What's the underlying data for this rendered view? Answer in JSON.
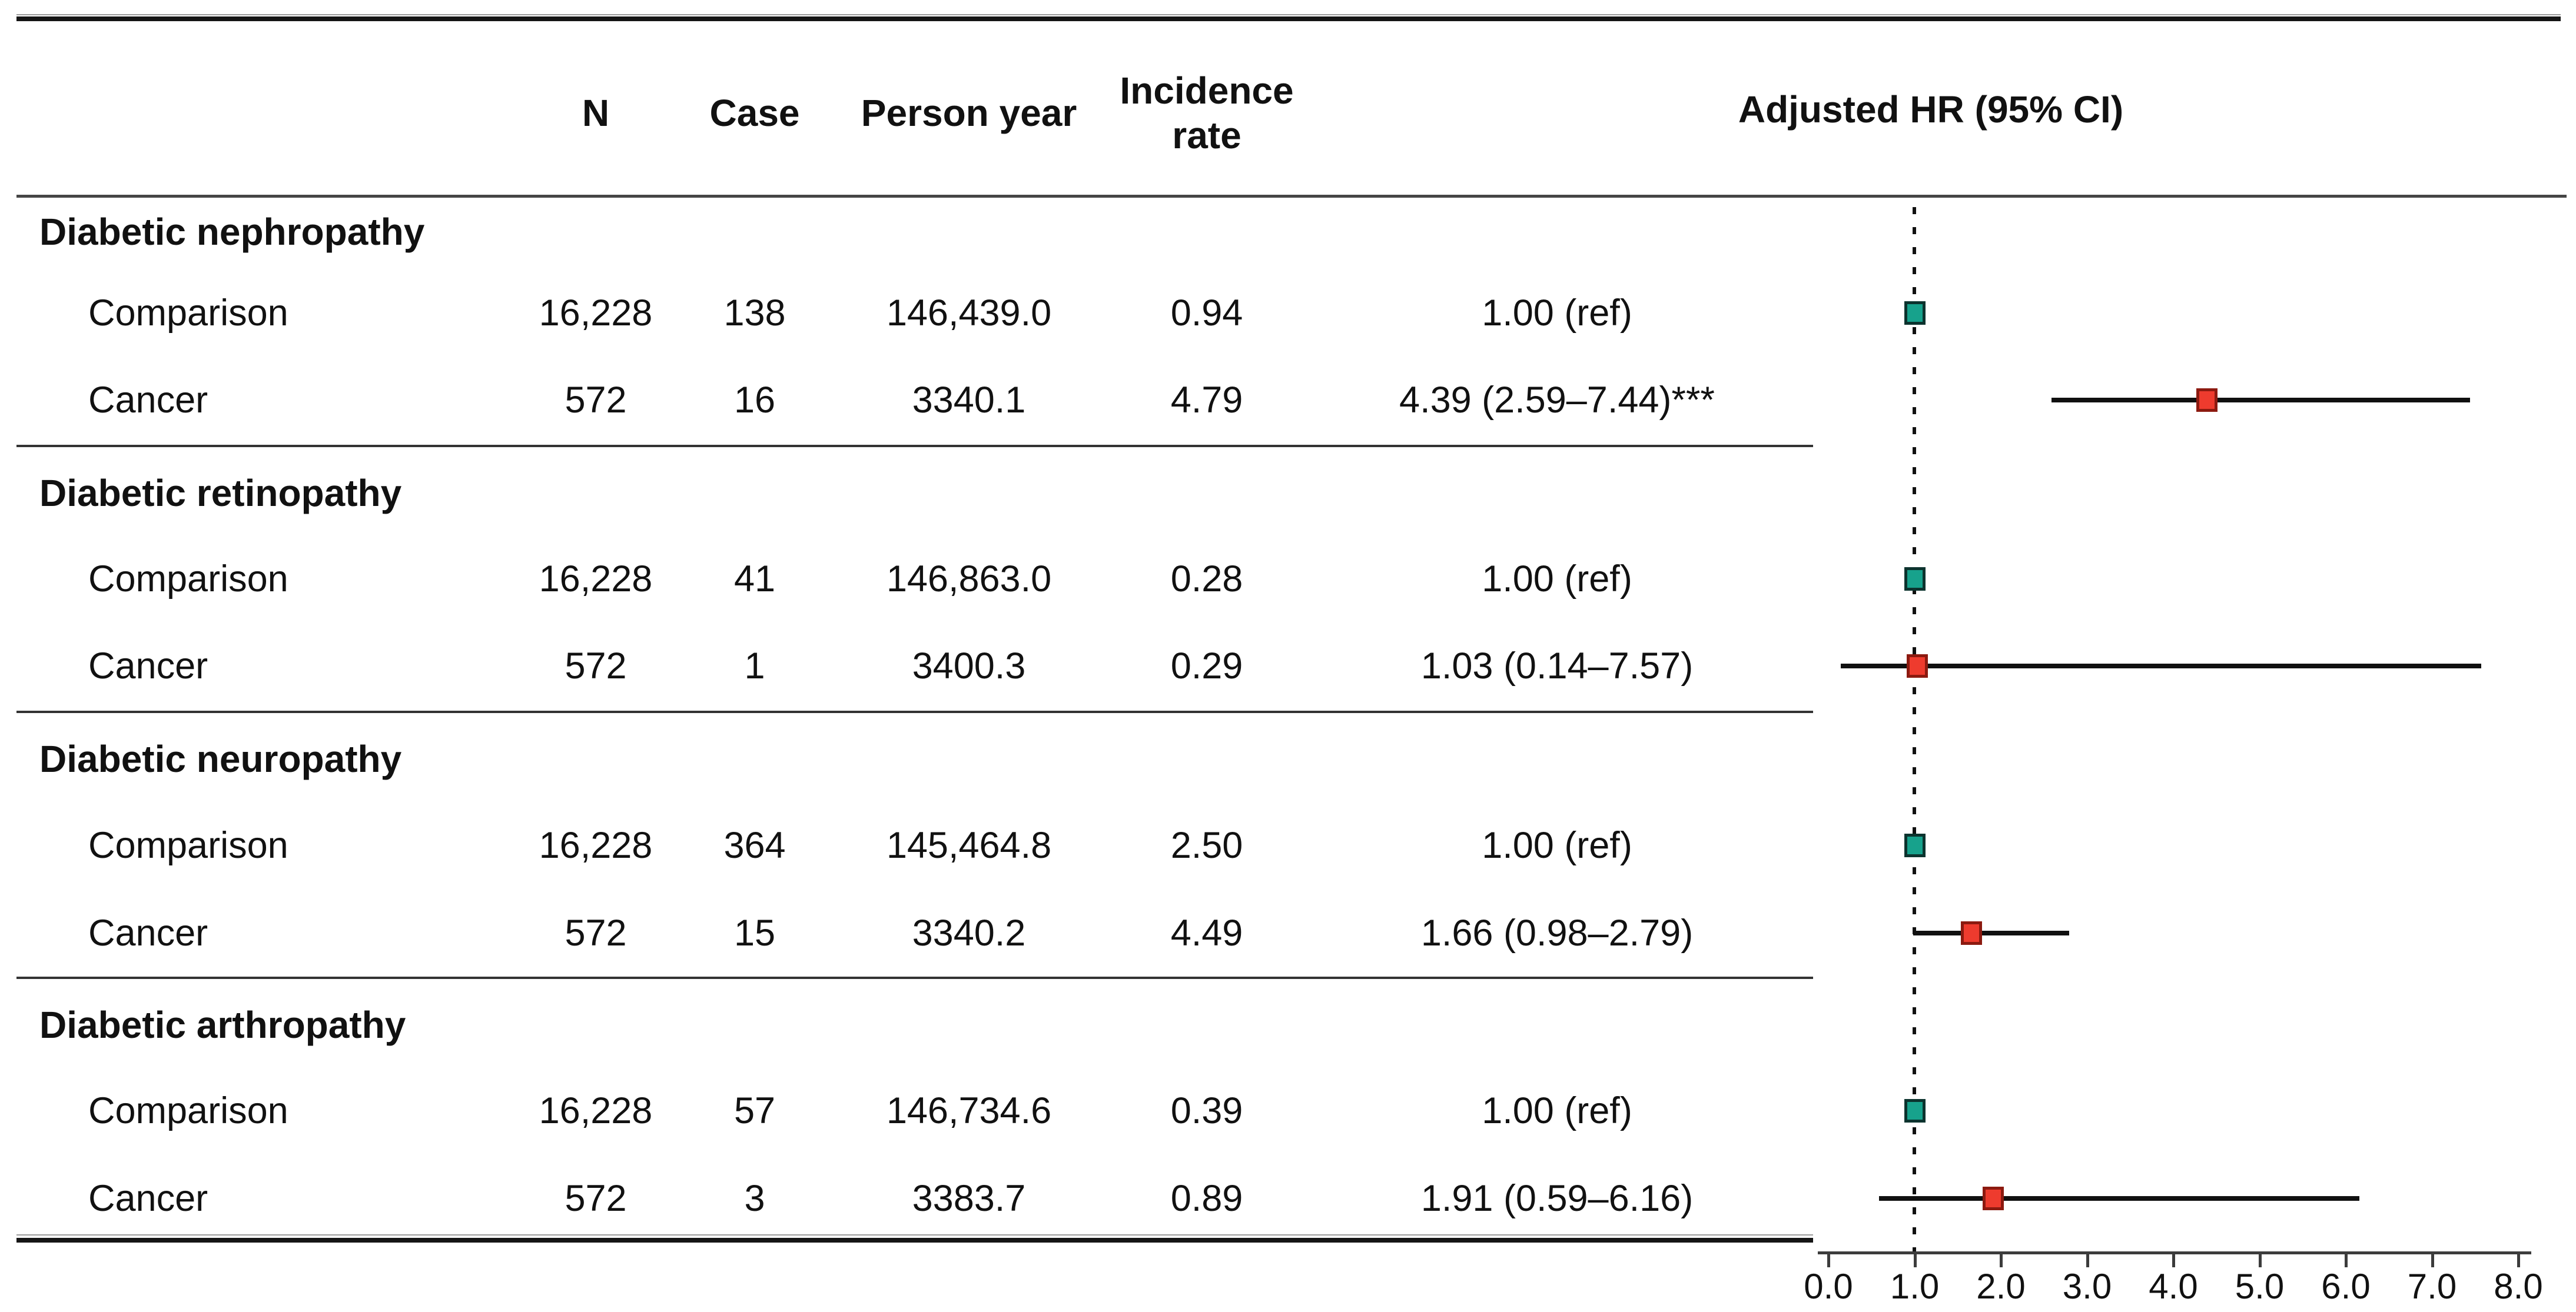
{
  "header": {
    "n": "N",
    "case": "Case",
    "person_year": "Person year",
    "incidence_line1": "Incidence",
    "incidence_line2": "rate",
    "adjusted_hr": "Adjusted HR (95% CI)"
  },
  "colors": {
    "comparison": {
      "fill": "#17A28C",
      "border": "#0C332E"
    },
    "cancer": {
      "fill": "#EE3B2E",
      "border": "#8C1A10"
    },
    "ci_line": "#101010",
    "reference_line": "#111111"
  },
  "chart_data": {
    "type": "forest",
    "title": "Adjusted HR (95% CI)",
    "axis": {
      "min": 0,
      "max": 8,
      "tick_step": 1,
      "tick_labels": [
        "0.0",
        "1.0",
        "2.0",
        "3.0",
        "4.0",
        "5.0",
        "6.0",
        "7.0",
        "8.0"
      ],
      "reference_value": 1.0,
      "grid": false
    },
    "columns": [
      "N",
      "Case",
      "Person year",
      "Incidence rate",
      "Adjusted HR (95% CI)"
    ],
    "sections": [
      {
        "condition": "Diabetic nephropathy",
        "rows": [
          {
            "group": "Comparison",
            "marker": "comparison",
            "n": "16,228",
            "case": "138",
            "person_year": "146,439.0",
            "incidence_rate": "0.94",
            "hr_label": "1.00 (ref)",
            "hr": 1.0,
            "ci_low": null,
            "ci_high": null
          },
          {
            "group": "Cancer",
            "marker": "cancer",
            "n": "572",
            "case": "16",
            "person_year": "3340.1",
            "incidence_rate": "4.79",
            "hr_label": "4.39 (2.59–7.44)***",
            "hr": 4.39,
            "ci_low": 2.59,
            "ci_high": 7.44
          }
        ]
      },
      {
        "condition": "Diabetic retinopathy",
        "rows": [
          {
            "group": "Comparison",
            "marker": "comparison",
            "n": "16,228",
            "case": "41",
            "person_year": "146,863.0",
            "incidence_rate": "0.28",
            "hr_label": "1.00 (ref)",
            "hr": 1.0,
            "ci_low": null,
            "ci_high": null
          },
          {
            "group": "Cancer",
            "marker": "cancer",
            "n": "572",
            "case": "1",
            "person_year": "3400.3",
            "incidence_rate": "0.29",
            "hr_label": "1.03 (0.14–7.57)",
            "hr": 1.03,
            "ci_low": 0.14,
            "ci_high": 7.57
          }
        ]
      },
      {
        "condition": "Diabetic neuropathy",
        "rows": [
          {
            "group": "Comparison",
            "marker": "comparison",
            "n": "16,228",
            "case": "364",
            "person_year": "145,464.8",
            "incidence_rate": "2.50",
            "hr_label": "1.00 (ref)",
            "hr": 1.0,
            "ci_low": null,
            "ci_high": null
          },
          {
            "group": "Cancer",
            "marker": "cancer",
            "n": "572",
            "case": "15",
            "person_year": "3340.2",
            "incidence_rate": "4.49",
            "hr_label": "1.66 (0.98–2.79)",
            "hr": 1.66,
            "ci_low": 0.98,
            "ci_high": 2.79
          }
        ]
      },
      {
        "condition": "Diabetic arthropathy",
        "rows": [
          {
            "group": "Comparison",
            "marker": "comparison",
            "n": "16,228",
            "case": "57",
            "person_year": "146,734.6",
            "incidence_rate": "0.39",
            "hr_label": "1.00 (ref)",
            "hr": 1.0,
            "ci_low": null,
            "ci_high": null
          },
          {
            "group": "Cancer",
            "marker": "cancer",
            "n": "572",
            "case": "3",
            "person_year": "3383.7",
            "incidence_rate": "0.89",
            "hr_label": "1.91 (0.59–6.16)",
            "hr": 1.91,
            "ci_low": 0.59,
            "ci_high": 6.16
          }
        ]
      }
    ]
  }
}
